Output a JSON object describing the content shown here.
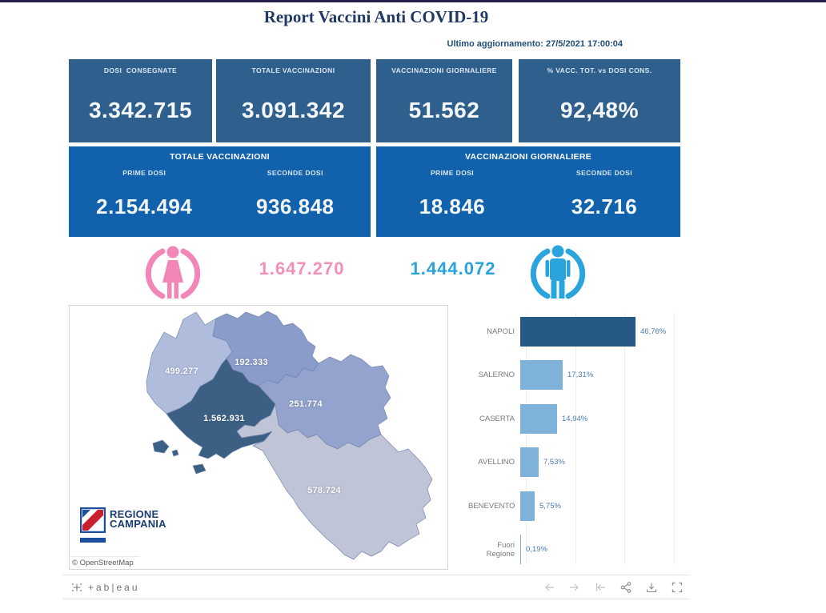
{
  "header": {
    "title": "Report Vaccini Anti COVID-19",
    "last_update": "Ultimo aggiornamento: 27/5/2021  17:00:04"
  },
  "kpis": [
    {
      "label": "DOSI  CONSEGNATE",
      "value": "3.342.715"
    },
    {
      "label": "TOTALE VACCINAZIONI",
      "value": "3.091.342"
    },
    {
      "label": "VACCINAZIONI GIORNALIERE",
      "value": "51.562"
    },
    {
      "label": "% VACC. TOT. vs DOSI CONS.",
      "value": "92,48%"
    }
  ],
  "dose_panels": [
    {
      "title": "TOTALE VACCINAZIONI",
      "columns": [
        {
          "label": "PRIME DOSI",
          "value": "2.154.494"
        },
        {
          "label": "SECONDE DOSI",
          "value": "936.848"
        }
      ]
    },
    {
      "title": "VACCINAZIONI GIORNALIERE",
      "columns": [
        {
          "label": "PRIME DOSI",
          "value": "18.846"
        },
        {
          "label": "SECONDE DOSI",
          "value": "32.716"
        }
      ]
    }
  ],
  "gender": {
    "female_value": "1.647.270",
    "male_value": "1.444.072",
    "female_color": "#F48FB8",
    "male_color": "#2AA3DB"
  },
  "map": {
    "attribution": "© OpenStreetMap",
    "logo_line1": "REGIONE",
    "logo_line2": "CAMPANIA",
    "regions": [
      {
        "name": "Caserta",
        "value": "499.277",
        "color": "#AFBCDC"
      },
      {
        "name": "Benevento",
        "value": "192.333",
        "color": "#8A9CC9"
      },
      {
        "name": "Avellino",
        "value": "251.774",
        "color": "#93A3CE"
      },
      {
        "name": "Napoli",
        "value": "1.562.931",
        "color": "#3C6083"
      },
      {
        "name": "Salerno",
        "value": "578.724",
        "color": "#BFC5D6"
      }
    ]
  },
  "chart_data": {
    "type": "bar",
    "orientation": "horizontal",
    "title": "",
    "xlabel": "",
    "ylabel": "",
    "categories": [
      "NAPOLI",
      "SALERNO",
      "CASERTA",
      "AVELLINO",
      "BENEVENTO",
      "Fuori Regione"
    ],
    "values": [
      46.76,
      17.31,
      14.94,
      7.53,
      5.75,
      0.19
    ],
    "value_labels": [
      "46,76%",
      "17,31%",
      "14,94%",
      "7,53%",
      "5,75%",
      "0,19%"
    ],
    "bar_colors": [
      "#265A84",
      "#7FB2D9",
      "#7FB2D9",
      "#7FB2D9",
      "#7FB2D9",
      "#7FB2D9"
    ],
    "xlim": [
      0,
      60
    ],
    "gridlines_pct": [
      0,
      20,
      40,
      60
    ],
    "grid": true,
    "legend": false
  },
  "toolbar": {
    "brand": "+ab|eau"
  },
  "colors": {
    "kpi_row1_bg": "#2F5F8C",
    "kpi_row2_bg": "#1161AC",
    "title": "#1F3864",
    "update_text": "#1F4E79"
  }
}
